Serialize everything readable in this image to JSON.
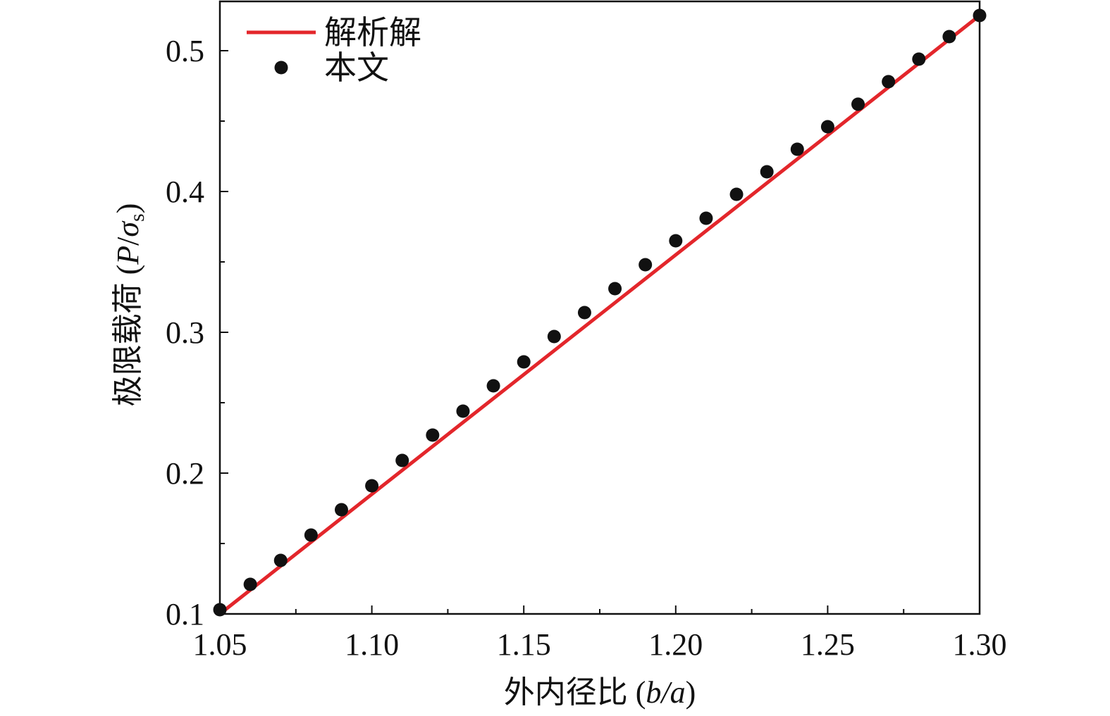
{
  "chart_data": {
    "type": "line",
    "xlabel": {
      "prefix": "外内径比 (",
      "var": "b/a",
      "suffix": ")"
    },
    "ylabel": {
      "prefix": "极限载荷 (",
      "var": "P",
      "slash": "/",
      "sigma": "σ",
      "sub": "s",
      "suffix": ")"
    },
    "xlim": [
      1.05,
      1.3
    ],
    "ylim": [
      0.1,
      0.535
    ],
    "x_ticks": [
      1.05,
      1.1,
      1.15,
      1.2,
      1.25,
      1.3
    ],
    "x_tick_labels": [
      "1.05",
      "1.10",
      "1.15",
      "1.20",
      "1.25",
      "1.30"
    ],
    "y_ticks": [
      0.1,
      0.2,
      0.3,
      0.4,
      0.5
    ],
    "y_tick_labels": [
      "0.1",
      "0.2",
      "0.3",
      "0.4",
      "0.5"
    ],
    "legend_position": "top-left",
    "series": [
      {
        "name": "解析解",
        "style": "line",
        "color": "#e3262b",
        "x": [
          1.05,
          1.3
        ],
        "y": [
          0.1,
          0.525
        ]
      },
      {
        "name": "本文",
        "style": "markers",
        "color": "#111111",
        "x": [
          1.05,
          1.06,
          1.07,
          1.08,
          1.09,
          1.1,
          1.11,
          1.12,
          1.13,
          1.14,
          1.15,
          1.16,
          1.17,
          1.18,
          1.19,
          1.2,
          1.21,
          1.22,
          1.23,
          1.24,
          1.25,
          1.26,
          1.27,
          1.28,
          1.29,
          1.3
        ],
        "y": [
          0.103,
          0.121,
          0.138,
          0.156,
          0.174,
          0.191,
          0.209,
          0.227,
          0.244,
          0.262,
          0.279,
          0.297,
          0.314,
          0.331,
          0.348,
          0.365,
          0.381,
          0.398,
          0.414,
          0.43,
          0.446,
          0.462,
          0.478,
          0.494,
          0.51,
          0.525
        ]
      }
    ]
  }
}
